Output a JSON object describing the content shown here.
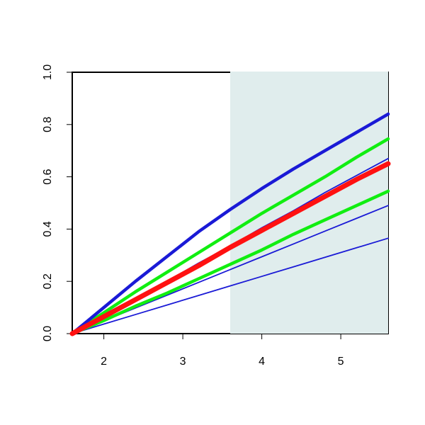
{
  "chart_data": {
    "type": "line",
    "x": [
      1.6,
      2.0,
      2.4,
      2.8,
      3.2,
      3.6,
      4.0,
      4.4,
      4.8,
      5.2,
      5.6
    ],
    "xlim": [
      1.6,
      5.6
    ],
    "xticks": [
      2,
      3,
      4,
      5
    ],
    "ylim": [
      0,
      1
    ],
    "yticks": [
      {
        "value": 0,
        "label": "0.0"
      },
      0.2,
      0.4,
      0.6,
      0.8,
      {
        "value": 1,
        "label": "1.0"
      }
    ],
    "shade": {
      "xmin": 3.6,
      "xmax": 5.6,
      "color": "#e0eded"
    },
    "series": [
      {
        "color": "#1a1ad6",
        "width": 1.8,
        "values": [
          0,
          0.0365,
          0.073,
          0.1095,
          0.146,
          0.1825,
          0.219,
          0.2555,
          0.292,
          0.3285,
          0.365
        ]
      },
      {
        "color": "#1a1ad6",
        "width": 1.8,
        "values": [
          0,
          0.049,
          0.098,
          0.147,
          0.196,
          0.245,
          0.294,
          0.343,
          0.392,
          0.441,
          0.49
        ]
      },
      {
        "color": "#1a1ad6",
        "width": 1.8,
        "values": [
          0,
          0.065,
          0.135,
          0.2,
          0.27,
          0.335,
          0.405,
          0.47,
          0.54,
          0.605,
          0.67
        ]
      },
      {
        "color": "#11ee11",
        "width": 4.5,
        "values": [
          0,
          0.05,
          0.105,
          0.155,
          0.21,
          0.265,
          0.32,
          0.38,
          0.435,
          0.49,
          0.545
        ]
      },
      {
        "color": "#11ee11",
        "width": 4.5,
        "values": [
          0,
          0.08,
          0.16,
          0.235,
          0.31,
          0.385,
          0.46,
          0.53,
          0.6,
          0.675,
          0.745
        ]
      },
      {
        "color": "#1a1ad6",
        "width": 4.5,
        "values": [
          0,
          0.1,
          0.2,
          0.295,
          0.39,
          0.475,
          0.555,
          0.63,
          0.7,
          0.77,
          0.84
        ]
      },
      {
        "color": "#ff1111",
        "width": 7,
        "values": [
          0,
          0.065,
          0.13,
          0.195,
          0.26,
          0.33,
          0.395,
          0.46,
          0.525,
          0.59,
          0.65
        ]
      }
    ]
  }
}
